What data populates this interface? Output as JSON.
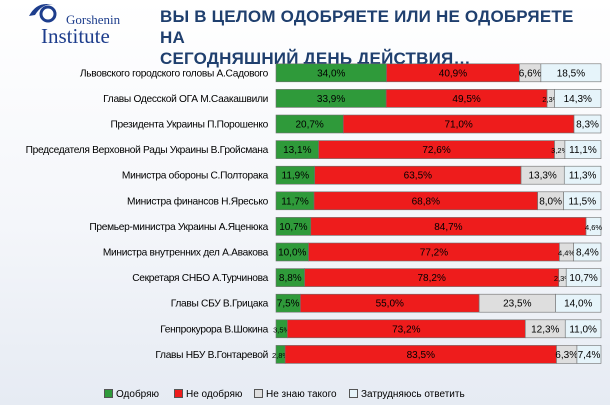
{
  "header": {
    "brand_line1": "Gorshenin",
    "brand_line2": "Institute",
    "title_line1": "ВЫ В ЦЕЛОМ ОДОБРЯЕТЕ ИЛИ НЕ ОДОБРЯЕТЕ НА",
    "title_line2": "СЕГОДНЯШНИЙ ДЕНЬ ДЕЙСТВИЯ…"
  },
  "colors": {
    "approve": "#2f9a3a",
    "disapprove": "#ee1c1c",
    "unknown": "#dedede",
    "hard": "#e6f4fa",
    "brand": "#1d3d8c"
  },
  "chart_data": {
    "type": "bar",
    "orientation": "horizontal",
    "stacked": true,
    "title": "ВЫ В ЦЕЛОМ ОДОБРЯЕТЕ ИЛИ НЕ ОДОБРЯЕТЕ НА СЕГОДНЯШНИЙ ДЕНЬ ДЕЙСТВИЯ…",
    "unit": "%",
    "xlim": [
      0,
      100
    ],
    "legend_position": "bottom",
    "categories": [
      "Львовского городского головы А.Садового",
      "Главы Одесской ОГА М.Саакашвили",
      "Президента Украины П.Порошенко",
      "Председателя Верховной Рады Украины В.Гройсмана",
      "Министра обороны С.Полторака",
      "Министра финансов Н.Яресько",
      "Премьер-министра Украины А.Яценюка",
      "Министра внутренних дел А.Авакова",
      "Секретаря СНБО А.Турчинова",
      "Главы СБУ В.Грицака",
      "Генпрокурора В.Шокина",
      "Главы НБУ В.Гонтаревой"
    ],
    "series": [
      {
        "name": "Одобряю",
        "color": "#2f9a3a",
        "values": [
          34.0,
          33.9,
          20.7,
          13.1,
          11.9,
          11.7,
          10.7,
          10.0,
          8.8,
          7.5,
          3.5,
          2.8
        ]
      },
      {
        "name": "Не одобряю",
        "color": "#ee1c1c",
        "values": [
          40.9,
          49.5,
          71.0,
          72.6,
          63.5,
          68.8,
          84.7,
          77.2,
          78.2,
          55.0,
          73.2,
          83.5
        ]
      },
      {
        "name": "Не знаю такого",
        "color": "#dedede",
        "values": [
          6.6,
          2.3,
          0,
          3.2,
          13.3,
          8.0,
          0,
          4.4,
          2.3,
          23.5,
          12.3,
          6.3
        ]
      },
      {
        "name": "Затрудняюсь ответить",
        "color": "#e6f4fa",
        "values": [
          18.5,
          14.3,
          8.3,
          11.1,
          11.3,
          11.5,
          4.6,
          8.4,
          10.7,
          14.0,
          11.0,
          7.4
        ]
      }
    ],
    "value_labels": [
      [
        "34,0%",
        "40,9%",
        "6,6%",
        "18,5%"
      ],
      [
        "33,9%",
        "49,5%",
        "2,3%",
        "14,3%"
      ],
      [
        "20,7%",
        "71,0%",
        "",
        "8,3%"
      ],
      [
        "13,1%",
        "72,6%",
        "3,2%",
        "11,1%"
      ],
      [
        "11,9%",
        "63,5%",
        "13,3%",
        "11,3%"
      ],
      [
        "11,7%",
        "68,8%",
        "8,0%",
        "11,5%"
      ],
      [
        "10,7%",
        "84,7%",
        "",
        "4,6%"
      ],
      [
        "10,0%",
        "77,2%",
        "4,4%",
        "8,4%"
      ],
      [
        "8,8%",
        "78,2%",
        "2,3%",
        "10,7%"
      ],
      [
        "7,5%",
        "55,0%",
        "23,5%",
        "14,0%"
      ],
      [
        "3,5%",
        "73,2%",
        "12,3%",
        "11,0%"
      ],
      [
        "2,8%",
        "83,5%",
        "6,3%",
        "7,4%"
      ]
    ]
  }
}
